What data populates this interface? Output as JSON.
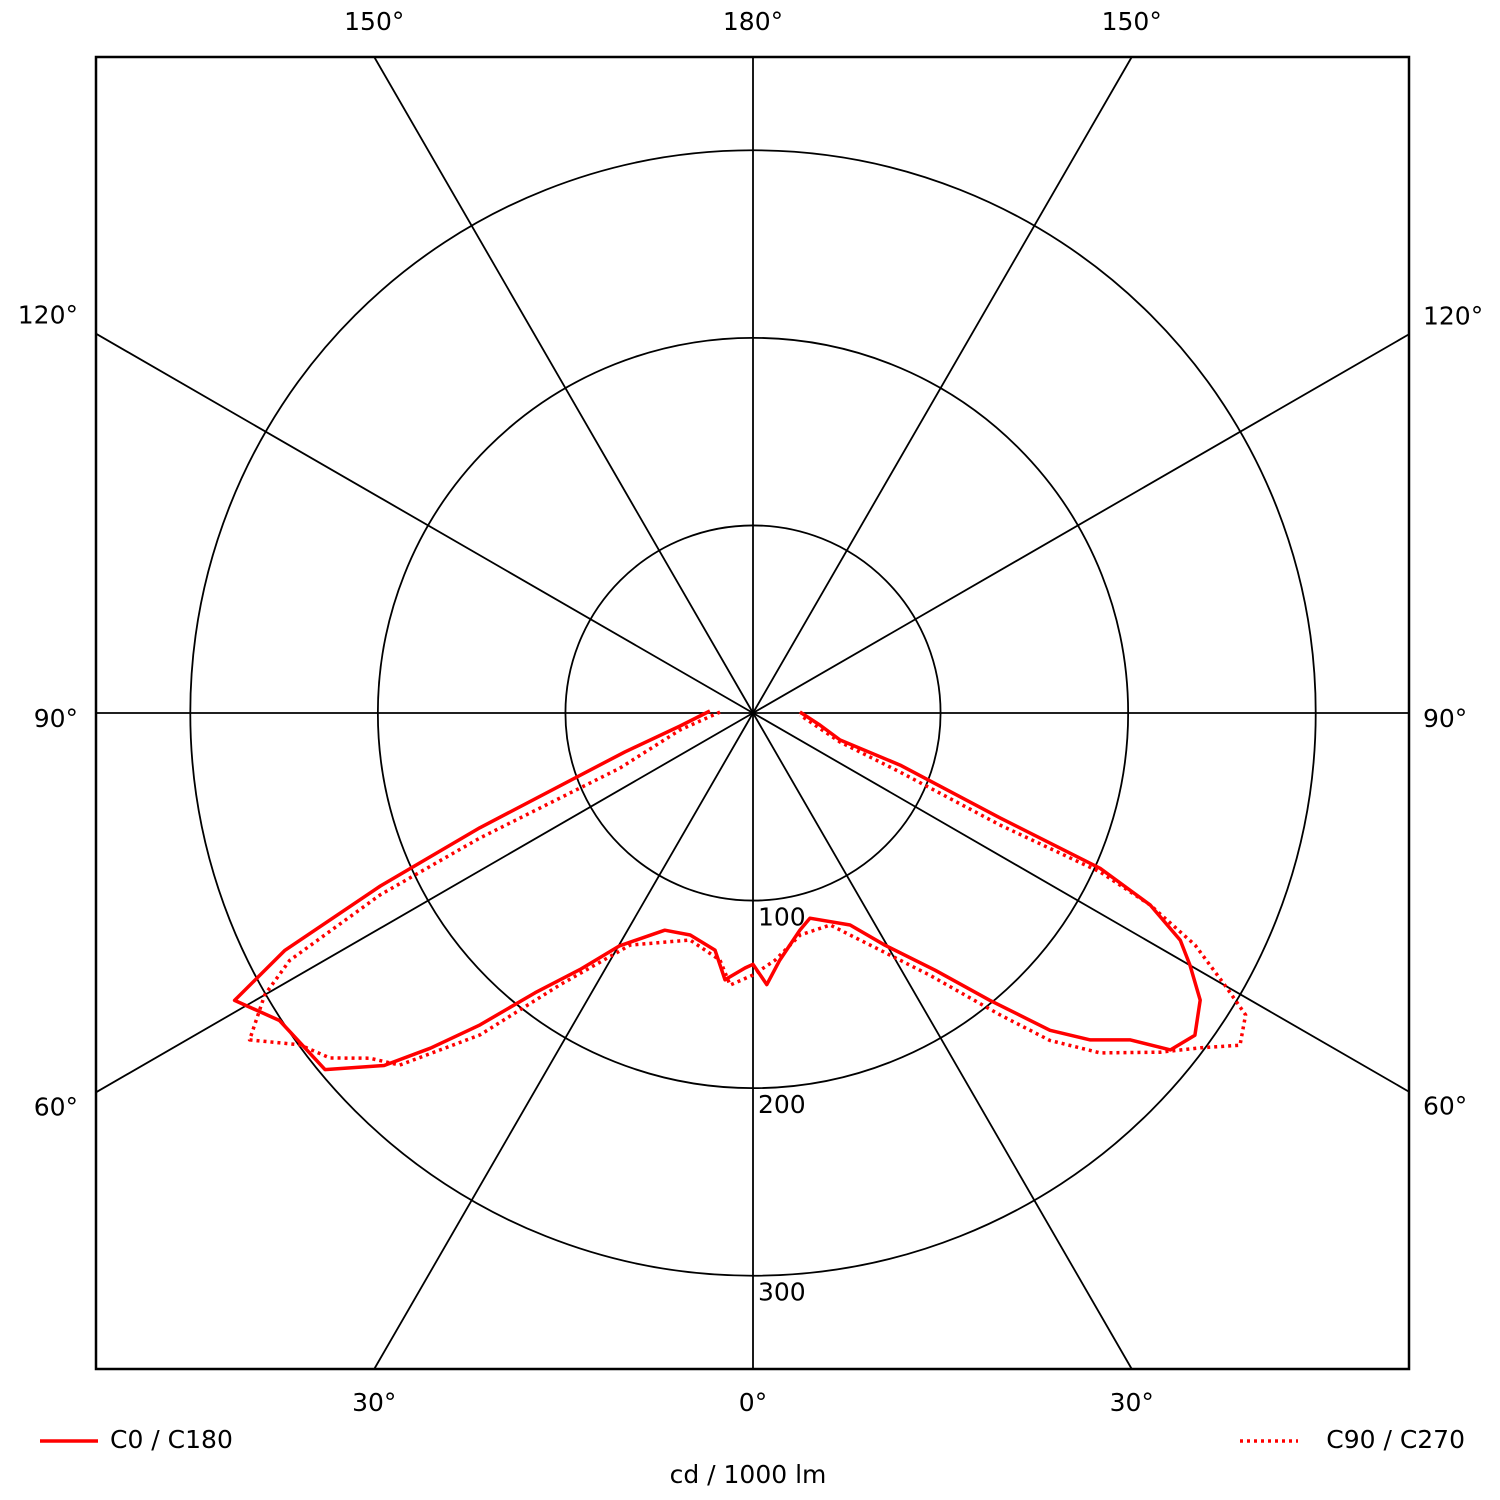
{
  "chart_data": {
    "type": "polar",
    "unit_label": "cd / 1000 lm",
    "rlim": [
      0,
      350
    ],
    "rticks": [
      100,
      200,
      300
    ],
    "angle_ticks": [
      {
        "value": -150,
        "label": "150°"
      },
      {
        "value": -120,
        "label": "120°"
      },
      {
        "value": -90,
        "label": "90°"
      },
      {
        "value": -60,
        "label": "60°"
      },
      {
        "value": -30,
        "label": "30°"
      },
      {
        "value": 0,
        "label": "0°"
      },
      {
        "value": 30,
        "label": "30°"
      },
      {
        "value": 60,
        "label": "60°"
      },
      {
        "value": 90,
        "label": "90°"
      },
      {
        "value": 120,
        "label": "120°"
      },
      {
        "value": 150,
        "label": "150°"
      },
      {
        "value": 180,
        "label": "180°"
      }
    ],
    "series": [
      {
        "name": "C0 / C180",
        "color": "#ff0000",
        "style": "solid",
        "x": [
          -92.7,
          -79.9,
          -73.1,
          -67.2,
          -65.1,
          -63.1,
          -61.0,
          -57.0,
          -50.2,
          -46.3,
          -43.9,
          -41.2,
          -37.9,
          -34.0,
          -29.8,
          -22.1,
          -15.8,
          -9.1,
          -6.0,
          -1.8,
          0,
          2.9,
          6.2,
          12.2,
          15.5,
          24.6,
          29.6,
          35.3,
          39.5,
          43.1,
          45.9,
          49.1,
          51.1,
          53.9,
          57.3,
          60.0,
          62.0,
          64.2,
          65.9,
          67.0,
          70.5,
          72.8,
          79.8,
          91.2
        ],
        "values": [
          23,
          39.5,
          71.4,
          158,
          219,
          280,
          316,
          301,
          297,
          272,
          248,
          221,
          189,
          165,
          143,
          125,
          123,
          128,
          143,
          136,
          134,
          145,
          132.5,
          118.4,
          113.5,
          124.3,
          142.4,
          168,
          198.5,
          231.7,
          250.4,
          266.2,
          286,
          291.6,
          283.3,
          269,
          258,
          235.2,
          202.7,
          143.1,
          83.2,
          48.6,
          36.3,
          25
        ]
      },
      {
        "name": "C90 / C270",
        "color": "#ff0000",
        "style": "dotted",
        "x": [
          -91.5,
          -76.9,
          -67.5,
          -65.4,
          -64.0,
          -61.9,
          -60.0,
          -57.0,
          -53.8,
          -50.8,
          -48.0,
          -45.1,
          -40.3,
          -35.4,
          -27.9,
          -15.5,
          -7.6,
          -4.8,
          0,
          5.1,
          12.0,
          20.0,
          28.2,
          34.0,
          39.3,
          42.2,
          45.6,
          50.2,
          53.2,
          55.7,
          58.5,
          60.0,
          62.3,
          64.2,
          65.4,
          65.6,
          68.1,
          71.6,
          87.6
        ],
        "values": [
          17.6,
          40,
          76.8,
          160,
          221,
          280,
          300.6,
          320,
          299.5,
          291,
          275,
          265.9,
          225,
          177.9,
          140,
          125.6,
          132.9,
          145.6,
          139.7,
          132.3,
          121,
          120.3,
          143.4,
          168.6,
          208,
          235.6,
          259,
          282.5,
          298,
          314.3,
          308,
          290.6,
          266.2,
          235,
          203.6,
          144.6,
          84.5,
          48.9,
          25.1
        ]
      }
    ]
  }
}
